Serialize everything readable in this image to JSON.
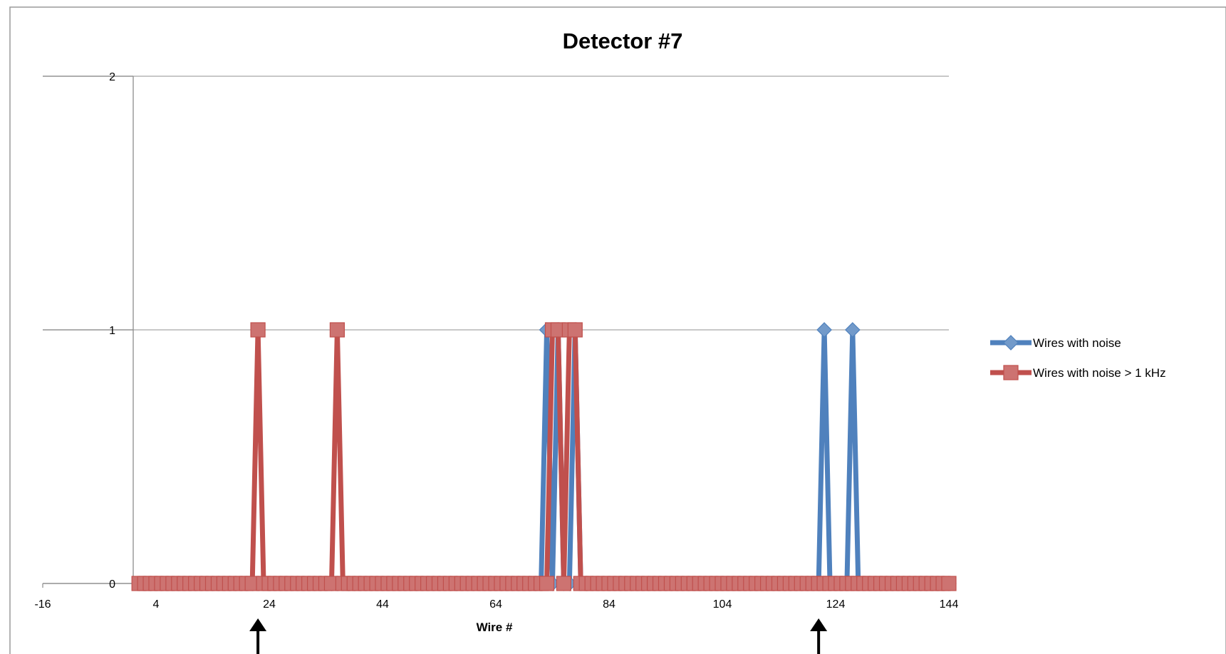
{
  "chart_data": {
    "type": "line",
    "title": "Detector #7",
    "xlabel": "Wire #",
    "ylabel": "",
    "xlim": [
      -16,
      144
    ],
    "ylim": [
      0,
      2
    ],
    "x_ticks": [
      -16,
      4,
      24,
      44,
      64,
      84,
      104,
      124,
      144
    ],
    "x_tick_labels": [
      "-16",
      "4",
      "24",
      "44",
      "64",
      "84",
      "104",
      "124",
      "144"
    ],
    "y_ticks": [
      0,
      1,
      2
    ],
    "y_tick_labels": [
      "0",
      "1",
      "2"
    ],
    "grid": "horizontal",
    "legend_position": "right",
    "x_range": [
      1,
      144
    ],
    "series": [
      {
        "name": "Wires with noise",
        "color": "#4F81BD",
        "marker": "diamond",
        "ones_at_x": [
          73,
          75,
          78,
          122,
          127
        ]
      },
      {
        "name": "Wires with noise > 1 kHz",
        "color": "#C0504D",
        "marker": "square",
        "ones_at_x": [
          22,
          36,
          74,
          75,
          77,
          78
        ]
      }
    ],
    "annotations": [
      {
        "type": "arrow",
        "direction": "up",
        "x": 22
      },
      {
        "type": "arrow",
        "direction": "up",
        "x": 121
      }
    ]
  }
}
